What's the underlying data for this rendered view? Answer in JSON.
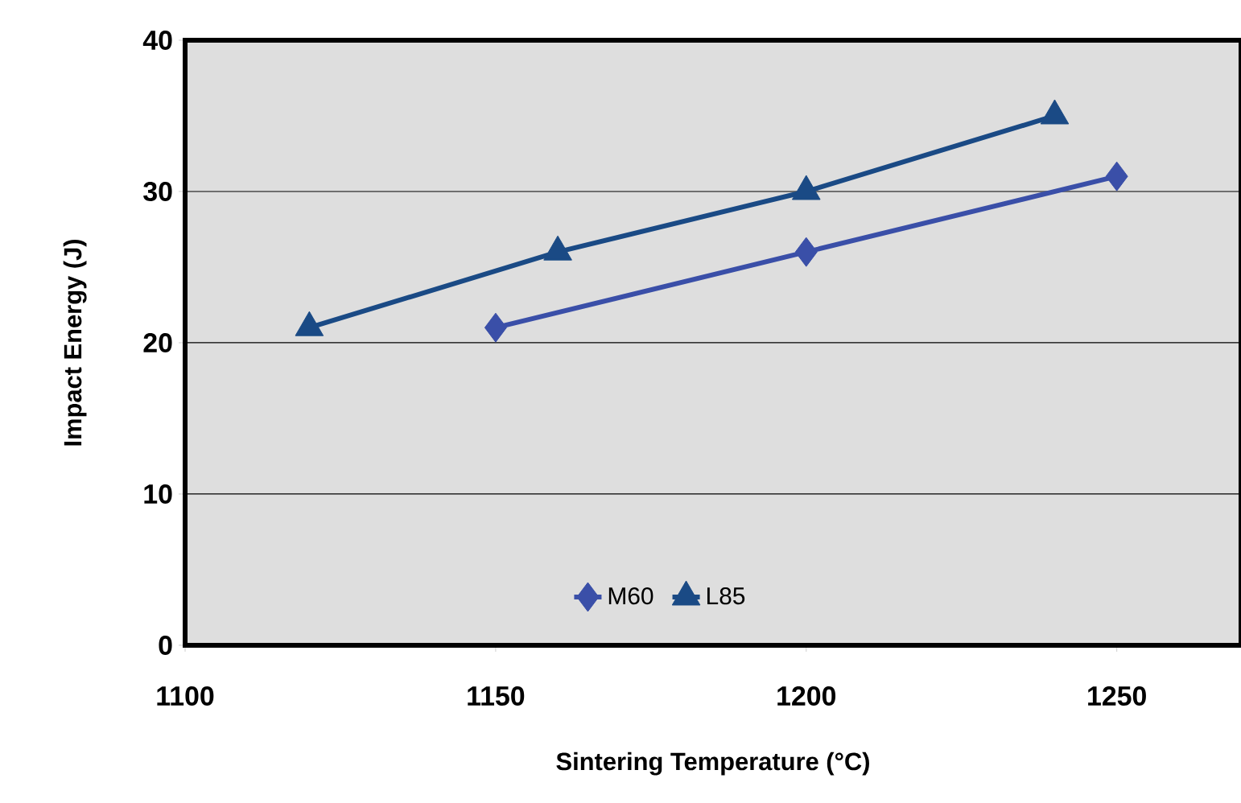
{
  "chart_data": {
    "type": "line",
    "xlabel": "Sintering Temperature (°C)",
    "ylabel": "Impact Energy (J)",
    "xlim": [
      1100,
      1270
    ],
    "xticks": [
      1100,
      1150,
      1200,
      1250
    ],
    "ylim": [
      0,
      40
    ],
    "yticks": [
      0,
      10,
      20,
      30,
      40
    ],
    "grid": "y",
    "legend": "bottom",
    "line_style": "solid",
    "series": [
      {
        "name": "M60",
        "color": "#3a4fa8",
        "marker": "diamond",
        "x": [
          1150,
          1200,
          1250
        ],
        "values": [
          21,
          26,
          31
        ]
      },
      {
        "name": "L85",
        "color": "#1a4a85",
        "marker": "triangle",
        "x": [
          1120,
          1160,
          1200,
          1240
        ],
        "values": [
          21,
          26,
          30,
          35
        ]
      }
    ]
  }
}
